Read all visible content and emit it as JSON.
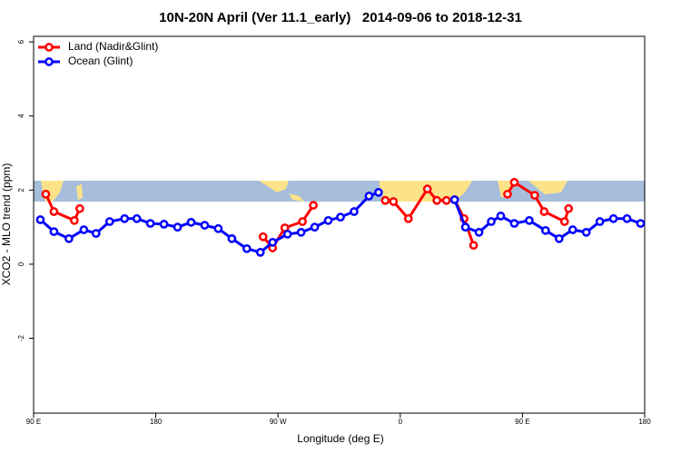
{
  "chart_data": {
    "type": "line",
    "title": "10N-20N April (Ver 11.1_early)   2014-09-06 to 2018-12-31",
    "x_label": "Longitude (deg E)",
    "y_label": "XCO2 - MLO trend (ppm)",
    "xlim": [
      90,
      540
    ],
    "xticks": [
      {
        "value": 90,
        "label": "90 E"
      },
      {
        "value": 180,
        "label": "180"
      },
      {
        "value": 270,
        "label": "90 W"
      },
      {
        "value": 360,
        "label": "0"
      },
      {
        "value": 450,
        "label": "90 E"
      },
      {
        "value": 540,
        "label": "180"
      }
    ],
    "ylim": [
      -4.02,
      6.15
    ],
    "yticks": [
      -2,
      0,
      2,
      4,
      6
    ],
    "legend": "top-left",
    "series": [
      {
        "name": "Land (Nadir&Glint)",
        "color": "#ff0000",
        "x": [
          99,
          105,
          120,
          124,
          190,
          259,
          266,
          275,
          288,
          296,
          320,
          349,
          355,
          366,
          380,
          387,
          394,
          400,
          407,
          414,
          425,
          439,
          444,
          459,
          466,
          481,
          484
        ],
        "values": [
          1.89,
          1.42,
          1.18,
          1.5,
          null,
          0.74,
          0.44,
          0.98,
          1.15,
          1.59,
          null,
          1.72,
          1.69,
          1.23,
          2.03,
          1.72,
          1.72,
          1.74,
          1.23,
          0.51,
          null,
          1.89,
          2.21,
          1.86,
          1.42,
          1.15,
          1.5
        ]
      },
      {
        "name": "Ocean (Glint)",
        "color": "#0000ff",
        "x": [
          95,
          105,
          116,
          127,
          136,
          146,
          157,
          166,
          176,
          186,
          196,
          206,
          216,
          226,
          236,
          247,
          257,
          266,
          277,
          287,
          297,
          307,
          316,
          326,
          337,
          344,
          372,
          400,
          408,
          418,
          427,
          434,
          444,
          455,
          467,
          477,
          487,
          497,
          507,
          517,
          527,
          537
        ],
        "values": [
          1.2,
          0.88,
          0.69,
          0.93,
          0.83,
          1.15,
          1.23,
          1.23,
          1.1,
          1.08,
          1.0,
          1.13,
          1.05,
          0.96,
          0.69,
          0.42,
          0.32,
          0.59,
          0.81,
          0.86,
          1.0,
          1.18,
          1.27,
          1.42,
          1.84,
          1.94,
          null,
          1.74,
          1.0,
          0.86,
          1.15,
          1.3,
          1.1,
          1.18,
          0.91,
          0.69,
          0.93,
          0.86,
          1.15,
          1.23,
          1.23,
          1.1
        ]
      }
    ]
  }
}
